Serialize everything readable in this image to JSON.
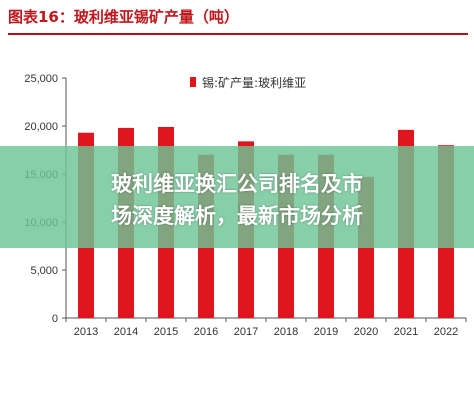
{
  "title": "图表16：玻利维亚锡矿产量（吨）",
  "banner": {
    "line1": "玻利维亚换汇公司排名及市",
    "line2": "场深度解析，最新市场分析"
  },
  "colors": {
    "bar": "#e0161f",
    "title": "#c0161c",
    "rule": "#b40f16",
    "banner": "#6cc496"
  },
  "chart_data": {
    "type": "bar",
    "categories": [
      "2013",
      "2014",
      "2015",
      "2016",
      "2017",
      "2018",
      "2019",
      "2020",
      "2021",
      "2022"
    ],
    "series": [
      {
        "name": "锡:矿产量:玻利维亚",
        "values": [
          19300,
          19800,
          19900,
          17000,
          18400,
          17000,
          17000,
          14700,
          19600,
          18000
        ]
      }
    ],
    "yticks": [
      "0",
      "5,000",
      "10,000",
      "15,000",
      "20,000",
      "25,000"
    ],
    "ylim": [
      0,
      25000
    ],
    "legend_position": "top-center",
    "grid": false
  }
}
